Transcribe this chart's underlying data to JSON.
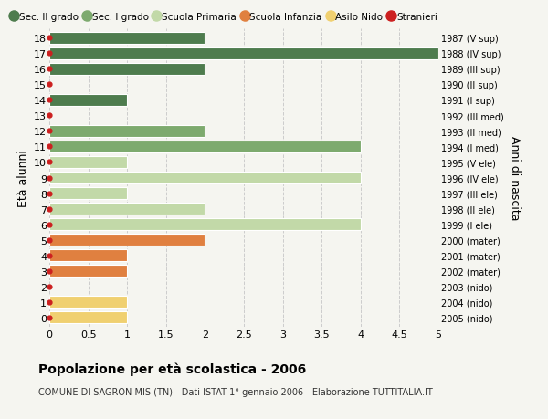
{
  "ages": [
    0,
    1,
    2,
    3,
    4,
    5,
    6,
    7,
    8,
    9,
    10,
    11,
    12,
    13,
    14,
    15,
    16,
    17,
    18
  ],
  "right_labels": [
    "2005 (nido)",
    "2004 (nido)",
    "2003 (nido)",
    "2002 (mater)",
    "2001 (mater)",
    "2000 (mater)",
    "1999 (I ele)",
    "1998 (II ele)",
    "1997 (III ele)",
    "1996 (IV ele)",
    "1995 (V ele)",
    "1994 (I med)",
    "1993 (II med)",
    "1992 (III med)",
    "1991 (I sup)",
    "1990 (II sup)",
    "1989 (III sup)",
    "1988 (IV sup)",
    "1987 (V sup)"
  ],
  "values": [
    1,
    1,
    0,
    1,
    1,
    2,
    4,
    2,
    1,
    4,
    1,
    4,
    2,
    0,
    1,
    0,
    2,
    5,
    2
  ],
  "categories": [
    "Sec. II grado",
    "Sec. I grado",
    "Scuola Primaria",
    "Scuola Infanzia",
    "Asilo Nido",
    "Stranieri"
  ],
  "colors": {
    "Sec. II grado": "#4e7c4e",
    "Sec. I grado": "#7daa6e",
    "Scuola Primaria": "#c2d9a8",
    "Scuola Infanzia": "#e08040",
    "Asilo Nido": "#f0d070",
    "Stranieri": "#cc2020"
  },
  "bar_colors": [
    "#f0d070",
    "#f0d070",
    "#f0d070",
    "#e08040",
    "#e08040",
    "#e08040",
    "#c2d9a8",
    "#c2d9a8",
    "#c2d9a8",
    "#c2d9a8",
    "#c2d9a8",
    "#7daa6e",
    "#7daa6e",
    "#7daa6e",
    "#4e7c4e",
    "#4e7c4e",
    "#4e7c4e",
    "#4e7c4e",
    "#4e7c4e"
  ],
  "xlim": [
    0,
    5.0
  ],
  "xticks": [
    0,
    0.5,
    1.0,
    1.5,
    2.0,
    2.5,
    3.0,
    3.5,
    4.0,
    4.5,
    5.0
  ],
  "ylabel_left": "Età alunni",
  "ylabel_right": "Anni di nascita",
  "title": "Popolazione per età scolastica - 2006",
  "subtitle": "COMUNE DI SAGRON MIS (TN) - Dati ISTAT 1° gennaio 2006 - Elaborazione TUTTITALIA.IT",
  "background_color": "#f5f5f0",
  "grid_color": "#cccccc",
  "bar_height": 0.75
}
